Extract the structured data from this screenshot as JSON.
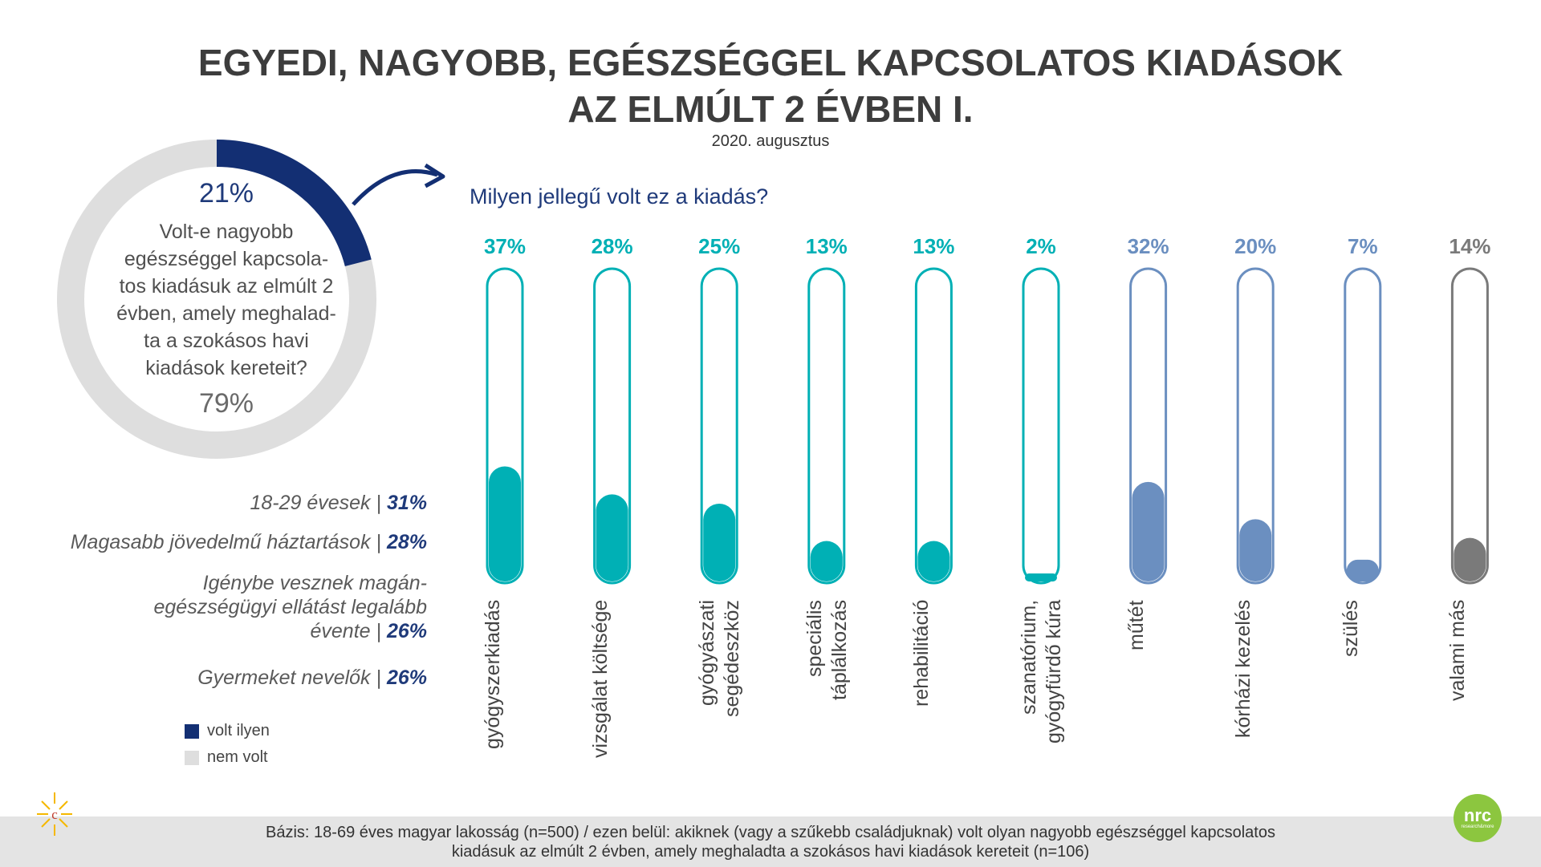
{
  "title_line1": "EGYEDI, NAGYOBB, EGÉSZSÉGGEL KAPCSOLATOS KIADÁSOK",
  "title_line2": "AZ ELMÚLT 2 ÉVBEN I.",
  "subtitle": "2020. augusztus",
  "donut": {
    "yes_label": "21%",
    "no_label": "79%",
    "yes_value": 21,
    "no_value": 79,
    "question": "Volt-e nagyobb egészséggel kapcsola-tos kiadásuk az elmúlt 2 évben, amely meghalad-ta a szokásos havi kiadások kereteit?",
    "colors": {
      "yes": "#132f73",
      "no": "#dedede"
    }
  },
  "question_right": "Milyen jellegű volt ez a kiadás?",
  "segments": [
    {
      "label": "18-29 évesek",
      "value": "31%"
    },
    {
      "label": "Magasabb jövedelmű háztartások",
      "value": "28%"
    },
    {
      "label": "Igénybe vesznek magán-egészségügyi ellátást legalább évente",
      "value": "26%"
    },
    {
      "label": "Gyermeket nevelők",
      "value": "26%"
    }
  ],
  "legend": {
    "yes": "volt ilyen",
    "no": "nem volt"
  },
  "chart_data": {
    "type": "bar",
    "categories": [
      "gyógyszerkiadás",
      "vizsgálat költsége",
      "gyógyászati segédeszköz",
      "speciális táplálkozás",
      "rehabilitáció",
      "szanatórium, gyógyfürdő kúra",
      "műtét",
      "kórházi kezelés",
      "szülés",
      "valami más"
    ],
    "values": [
      37,
      28,
      25,
      13,
      13,
      2,
      32,
      20,
      7,
      14
    ],
    "labels": [
      "37%",
      "28%",
      "25%",
      "13%",
      "13%",
      "2%",
      "32%",
      "20%",
      "7%",
      "14%"
    ],
    "colors": [
      "#00b0b5",
      "#00b0b5",
      "#00b0b5",
      "#00b0b5",
      "#00b0b5",
      "#00b0b5",
      "#6b8fc0",
      "#6b8fc0",
      "#6b8fc0",
      "#7a7a7a"
    ],
    "ylim": [
      0,
      100
    ]
  },
  "base_line1": "Bázis: 18-69 éves magyar lakosság (n=500) / ezen belül: akiknek (vagy a szűkebb családjuknak) volt olyan nagyobb egészséggel kapcsolatos",
  "base_line2": "kiadásuk az elmúlt 2 évben, amely meghaladta a szokásos havi kiadások kereteit (n=106)",
  "logo_right": {
    "main": "nrc",
    "sub": "research&more"
  }
}
